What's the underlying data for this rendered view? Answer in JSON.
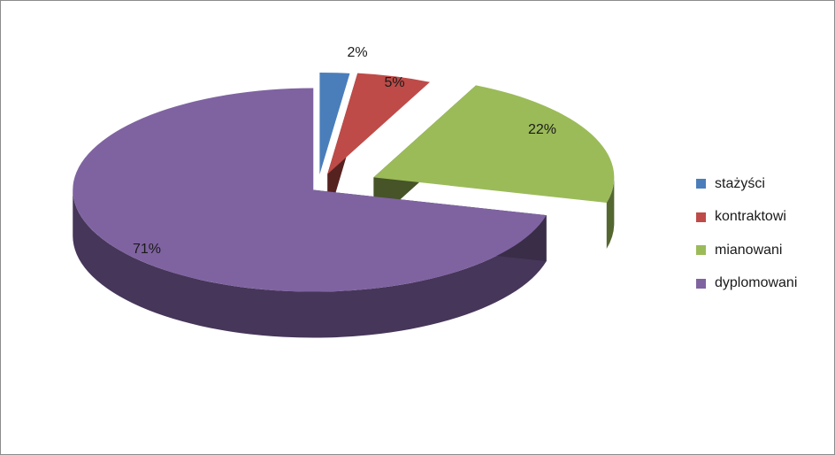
{
  "chart_data": {
    "type": "pie",
    "style": "3d-exploded",
    "title": "",
    "categories": [
      "stażyści",
      "kontraktowi",
      "mianowani",
      "dyplomowani"
    ],
    "values": [
      2,
      5,
      22,
      71
    ],
    "unit": "%",
    "data_labels": [
      "2%",
      "5%",
      "22%",
      "71%"
    ],
    "colors": [
      "#4a7ebb",
      "#be4b48",
      "#9bbb59",
      "#7f63a1"
    ],
    "legend": "right"
  }
}
